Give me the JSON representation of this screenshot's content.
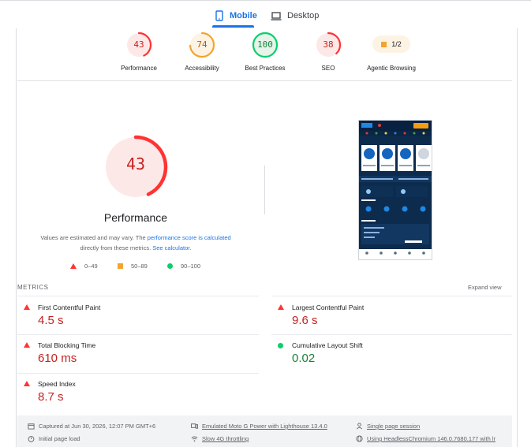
{
  "tabs": [
    {
      "label": "Mobile",
      "active": true,
      "icon": "smartphone-icon"
    },
    {
      "label": "Desktop",
      "active": false,
      "icon": "laptop-icon"
    }
  ],
  "categories": [
    {
      "label": "Performance",
      "score": "43",
      "color": "#f33"
    },
    {
      "label": "Accessibility",
      "score": "74",
      "color": "#f4a32e"
    },
    {
      "label": "Best Practices",
      "score": "100",
      "color": "#0cce6b"
    },
    {
      "label": "SEO",
      "score": "38",
      "color": "#f33"
    },
    {
      "label": "Agentic Browsing",
      "score": "1/2",
      "color": "#f4a32e"
    }
  ],
  "performance": {
    "score": "43",
    "title": "Performance",
    "note_prefix": "Values are estimated and may vary. The ",
    "note_link1": "performance score is calculated",
    "note_middle": " directly from these metrics. ",
    "note_link2": "See calculator."
  },
  "legend": [
    {
      "range": "0–49",
      "shape": "triangle-icon",
      "color": "#f33"
    },
    {
      "range": "50–89",
      "shape": "square-icon",
      "color": "#f4a32e"
    },
    {
      "range": "90–100",
      "shape": "circle-icon",
      "color": "#0cce6b"
    }
  ],
  "metrics_header": "METRICS",
  "expand_view": "Expand view",
  "metrics": [
    {
      "label": "First Contentful Paint",
      "value": "4.5 s",
      "status": "bad"
    },
    {
      "label": "Largest Contentful Paint",
      "value": "9.6 s",
      "status": "bad"
    },
    {
      "label": "Total Blocking Time",
      "value": "610 ms",
      "status": "bad"
    },
    {
      "label": "Cumulative Layout Shift",
      "value": "0.02",
      "status": "good"
    },
    {
      "label": "Speed Index",
      "value": "8.7 s",
      "status": "bad"
    }
  ],
  "footer": {
    "captured": "Captured at Jun 30, 2026, 12:07 PM GMT+6",
    "initial_load": "Initial page load",
    "emulated": "Emulated Moto G Power with Lighthouse 13.4.0",
    "throttling": "Slow 4G throttling",
    "session": "Single page session",
    "browser": "Using HeadlessChromium 146.0.7680.177 with lr"
  },
  "screenshot": {
    "header_button": "Join",
    "section_a": "TOP SPORTS",
    "section_b": "TOP EVENTS",
    "nav": [
      "Sports",
      "Casino",
      "Bet Slip",
      "Log In",
      "More"
    ]
  },
  "colors": {
    "accent": "#1a73e8",
    "bad": "#c5221f",
    "good": "#188038",
    "average": "#f4a32e"
  }
}
